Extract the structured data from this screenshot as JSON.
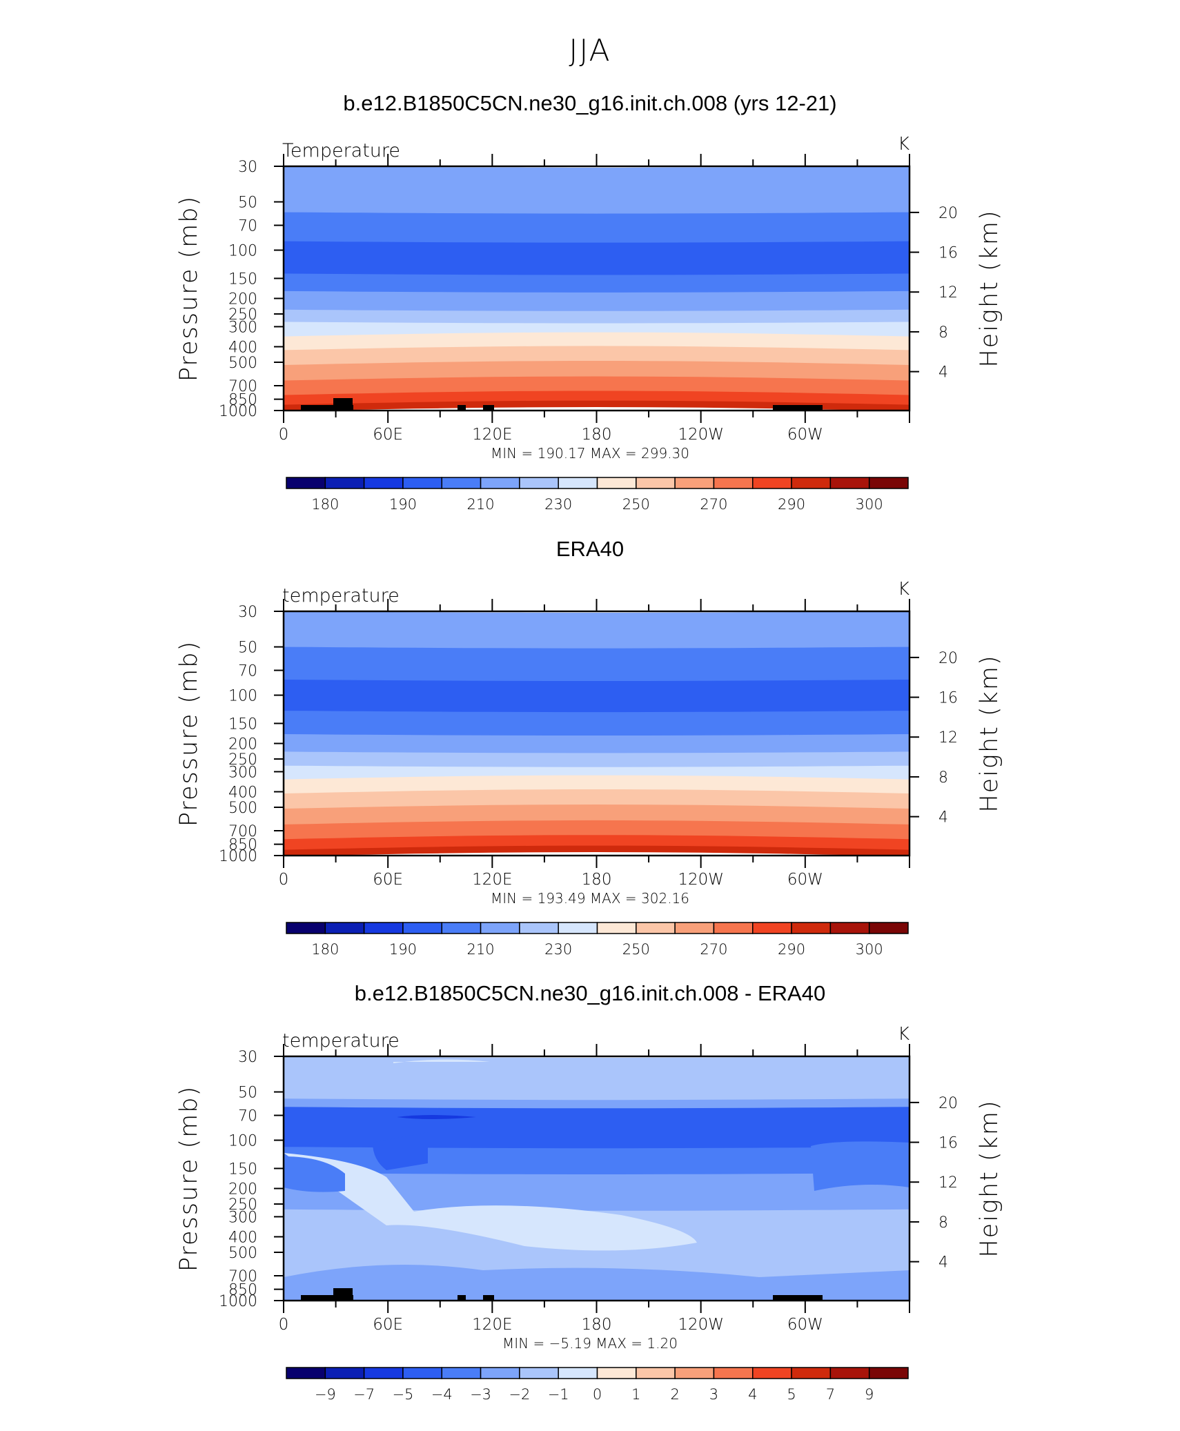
{
  "page_title": "JJA",
  "x_ticks": [
    "0",
    "60E",
    "120E",
    "180",
    "120W",
    "60W"
  ],
  "pressure_ticks": [
    "30",
    "50",
    "70",
    "100",
    "150",
    "200",
    "250",
    "300",
    "400",
    "500",
    "700",
    "850",
    "1000"
  ],
  "height_ticks": [
    "20",
    "16",
    "12",
    "8",
    "4"
  ],
  "left_axis_label": "Pressure  (mb)",
  "right_axis_label": "Height  (km)",
  "palette": [
    "#08006e",
    "#0b1fb4",
    "#1639e0",
    "#2d5ef2",
    "#4a7df7",
    "#7da4fa",
    "#aac5fb",
    "#d6e6fd",
    "#fde8d6",
    "#fbc6a8",
    "#f8a07a",
    "#f6754e",
    "#f04422",
    "#cf2a0c",
    "#a8140a",
    "#7a0606"
  ],
  "chart_data": [
    {
      "type": "heatmap",
      "title": "b.e12.B1850C5CN.ne30_g16.init.ch.008 (yrs 12-21)",
      "left_label": "Temperature",
      "unit": "K",
      "min_max_text": "MIN  =  190.17    MAX  =  299.30",
      "min": 190.17,
      "max": 299.3,
      "colorbar_labels": [
        "180",
        "190",
        "210",
        "230",
        "250",
        "270",
        "290",
        "300"
      ],
      "ylim": [
        1000,
        30
      ],
      "bands": [
        {
          "p_bottom": 30,
          "p_top": 30,
          "color_index": 5
        },
        {
          "p_bottom": 58,
          "p_top": 30,
          "color_index": 5
        },
        {
          "p_bottom": 88,
          "p_top": 58,
          "color_index": 4
        },
        {
          "p_bottom": 140,
          "p_top": 88,
          "color_index": 3
        },
        {
          "p_bottom": 180,
          "p_top": 140,
          "color_index": 4
        },
        {
          "p_bottom": 235,
          "p_top": 180,
          "color_index": 5
        },
        {
          "p_bottom": 280,
          "p_top": 235,
          "color_index": 6
        },
        {
          "p_bottom": 345,
          "p_top": 280,
          "color_index": 7
        },
        {
          "p_bottom": 420,
          "p_top": 345,
          "color_index": 8
        },
        {
          "p_bottom": 520,
          "p_top": 420,
          "color_index": 9
        },
        {
          "p_bottom": 650,
          "p_top": 520,
          "color_index": 10
        },
        {
          "p_bottom": 800,
          "p_top": 650,
          "color_index": 11
        },
        {
          "p_bottom": 920,
          "p_top": 800,
          "color_index": 12
        },
        {
          "p_bottom": 1000,
          "p_top": 920,
          "color_index": 13
        }
      ],
      "has_topography": true
    },
    {
      "type": "heatmap",
      "title": "ERA40",
      "left_label": "temperature",
      "unit": "K",
      "min_max_text": "MIN  =  193.49    MAX  =  302.16",
      "min": 193.49,
      "max": 302.16,
      "colorbar_labels": [
        "180",
        "190",
        "210",
        "230",
        "250",
        "270",
        "290",
        "300"
      ],
      "ylim": [
        1000,
        30
      ],
      "bands": [
        {
          "p_bottom": 50,
          "p_top": 30,
          "color_index": 5
        },
        {
          "p_bottom": 80,
          "p_top": 50,
          "color_index": 4
        },
        {
          "p_bottom": 125,
          "p_top": 80,
          "color_index": 3
        },
        {
          "p_bottom": 175,
          "p_top": 125,
          "color_index": 4
        },
        {
          "p_bottom": 225,
          "p_top": 175,
          "color_index": 5
        },
        {
          "p_bottom": 275,
          "p_top": 225,
          "color_index": 6
        },
        {
          "p_bottom": 335,
          "p_top": 275,
          "color_index": 7
        },
        {
          "p_bottom": 410,
          "p_top": 335,
          "color_index": 8
        },
        {
          "p_bottom": 510,
          "p_top": 410,
          "color_index": 9
        },
        {
          "p_bottom": 640,
          "p_top": 510,
          "color_index": 10
        },
        {
          "p_bottom": 790,
          "p_top": 640,
          "color_index": 11
        },
        {
          "p_bottom": 920,
          "p_top": 790,
          "color_index": 12
        },
        {
          "p_bottom": 1000,
          "p_top": 920,
          "color_index": 13
        }
      ],
      "has_topography": false
    },
    {
      "type": "heatmap",
      "title": "b.e12.B1850C5CN.ne30_g16.init.ch.008 - ERA40",
      "left_label": "temperature",
      "unit": "K",
      "min_max_text": "MIN  =    −5.19    MAX  =      1.20",
      "min": -5.19,
      "max": 1.2,
      "colorbar_labels": [
        "−9",
        "−7",
        "−5",
        "−4",
        "−3",
        "−2",
        "−1",
        "0",
        "1",
        "2",
        "3",
        "4",
        "5",
        "7",
        "9"
      ],
      "ylim": [
        1000,
        30
      ],
      "bands": [
        {
          "p_bottom": 55,
          "p_top": 30,
          "color_index": 6
        },
        {
          "p_bottom": 62,
          "p_top": 55,
          "color_index": 5
        },
        {
          "p_bottom": 110,
          "p_top": 62,
          "color_index": 3
        },
        {
          "p_bottom": 160,
          "p_top": 110,
          "color_index": 4
        },
        {
          "p_bottom": 270,
          "p_top": 160,
          "color_index": 5
        },
        {
          "p_bottom": 820,
          "p_top": 270,
          "color_index": 6
        },
        {
          "p_bottom": 1000,
          "p_top": 820,
          "color_index": 6
        }
      ],
      "has_topography": true
    }
  ]
}
